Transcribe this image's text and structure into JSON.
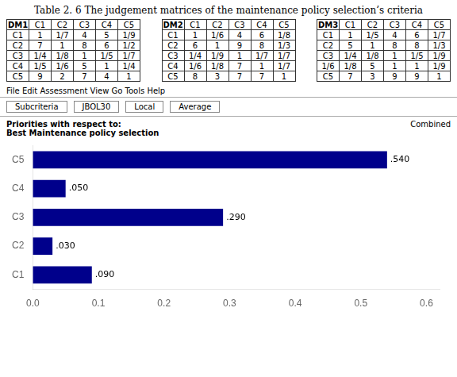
{
  "chart_data": {
    "type": "bar",
    "title": "Table 2. 6 The judgement matrices of the maintenance policy selection’s criteria",
    "tables": [
      {
        "headers": [
          "DM1",
          "C1",
          "C2",
          "C3",
          "C4",
          "C5"
        ],
        "rows": [
          [
            "C1",
            "1",
            "1/7",
            "4",
            "5",
            "1/9"
          ],
          [
            "C2",
            "7",
            "1",
            "8",
            "6",
            "1/2"
          ],
          [
            "C3",
            "1/4",
            "1/8",
            "1",
            "1/5",
            "1/7"
          ],
          [
            "C4",
            "1/5",
            "1/6",
            "5",
            "1",
            "1/4"
          ],
          [
            "C5",
            "9",
            "2",
            "7",
            "4",
            "1"
          ]
        ]
      },
      {
        "headers": [
          "DM2",
          "C1",
          "C2",
          "C3",
          "C4",
          "C5"
        ],
        "rows": [
          [
            "C1",
            "1",
            "1/6",
            "4",
            "6",
            "1/8"
          ],
          [
            "C2",
            "6",
            "1",
            "9",
            "8",
            "1/3"
          ],
          [
            "C3",
            "1/4",
            "1/9",
            "1",
            "1/7",
            "1/7"
          ],
          [
            "C4",
            "1/6",
            "1/8",
            "7",
            "1",
            "1/7"
          ],
          [
            "C5",
            "8",
            "3",
            "7",
            "7",
            "1"
          ]
        ]
      },
      {
        "headers": [
          "DM3",
          "C1",
          "C2",
          "C3",
          "C4",
          "C5"
        ],
        "rows": [
          [
            "C1",
            "1",
            "1/5",
            "4",
            "6",
            "1/7"
          ],
          [
            "C2",
            "5",
            "1",
            "8",
            "8",
            "1/3"
          ],
          [
            "C3",
            "1/4",
            "1/8",
            "1",
            "1/5",
            "1/9"
          ],
          [
            "1/6",
            "1/8",
            "5",
            "1",
            "1",
            "1/9"
          ],
          [
            "C5",
            "7",
            "3",
            "9",
            "9",
            "1"
          ]
        ]
      }
    ],
    "annotations": [
      "File  Edit  Assessment  View  Go  Tools  Help",
      "Subcriteria",
      "JBOL30",
      "Local",
      "Average",
      "Priorities with respect to:\nBest Maintenance policy selection",
      "Combined"
    ],
    "orientation": "horizontal",
    "categories": [
      "C1",
      "C2",
      "C3",
      "C4",
      "C5"
    ],
    "values": [
      0.09,
      0.03,
      0.29,
      0.05,
      0.54
    ],
    "value_labels": [
      ".090",
      ".030",
      ".290",
      ".050",
      ".540"
    ],
    "data_labels": true,
    "color": "#00008B",
    "xlim": [
      0,
      0.62
    ],
    "xticks": [
      {
        "value": 0,
        "label": "0.0"
      },
      {
        "value": 0.1,
        "label": "0.1"
      },
      {
        "value": 0.2,
        "label": "0.2"
      },
      {
        "value": 0.3,
        "label": "0.3"
      },
      {
        "value": 0.4,
        "label": "0.4"
      },
      {
        "value": 0.5,
        "label": "0.5"
      },
      {
        "value": 0.6,
        "label": "0.6"
      }
    ],
    "grid": false
  }
}
